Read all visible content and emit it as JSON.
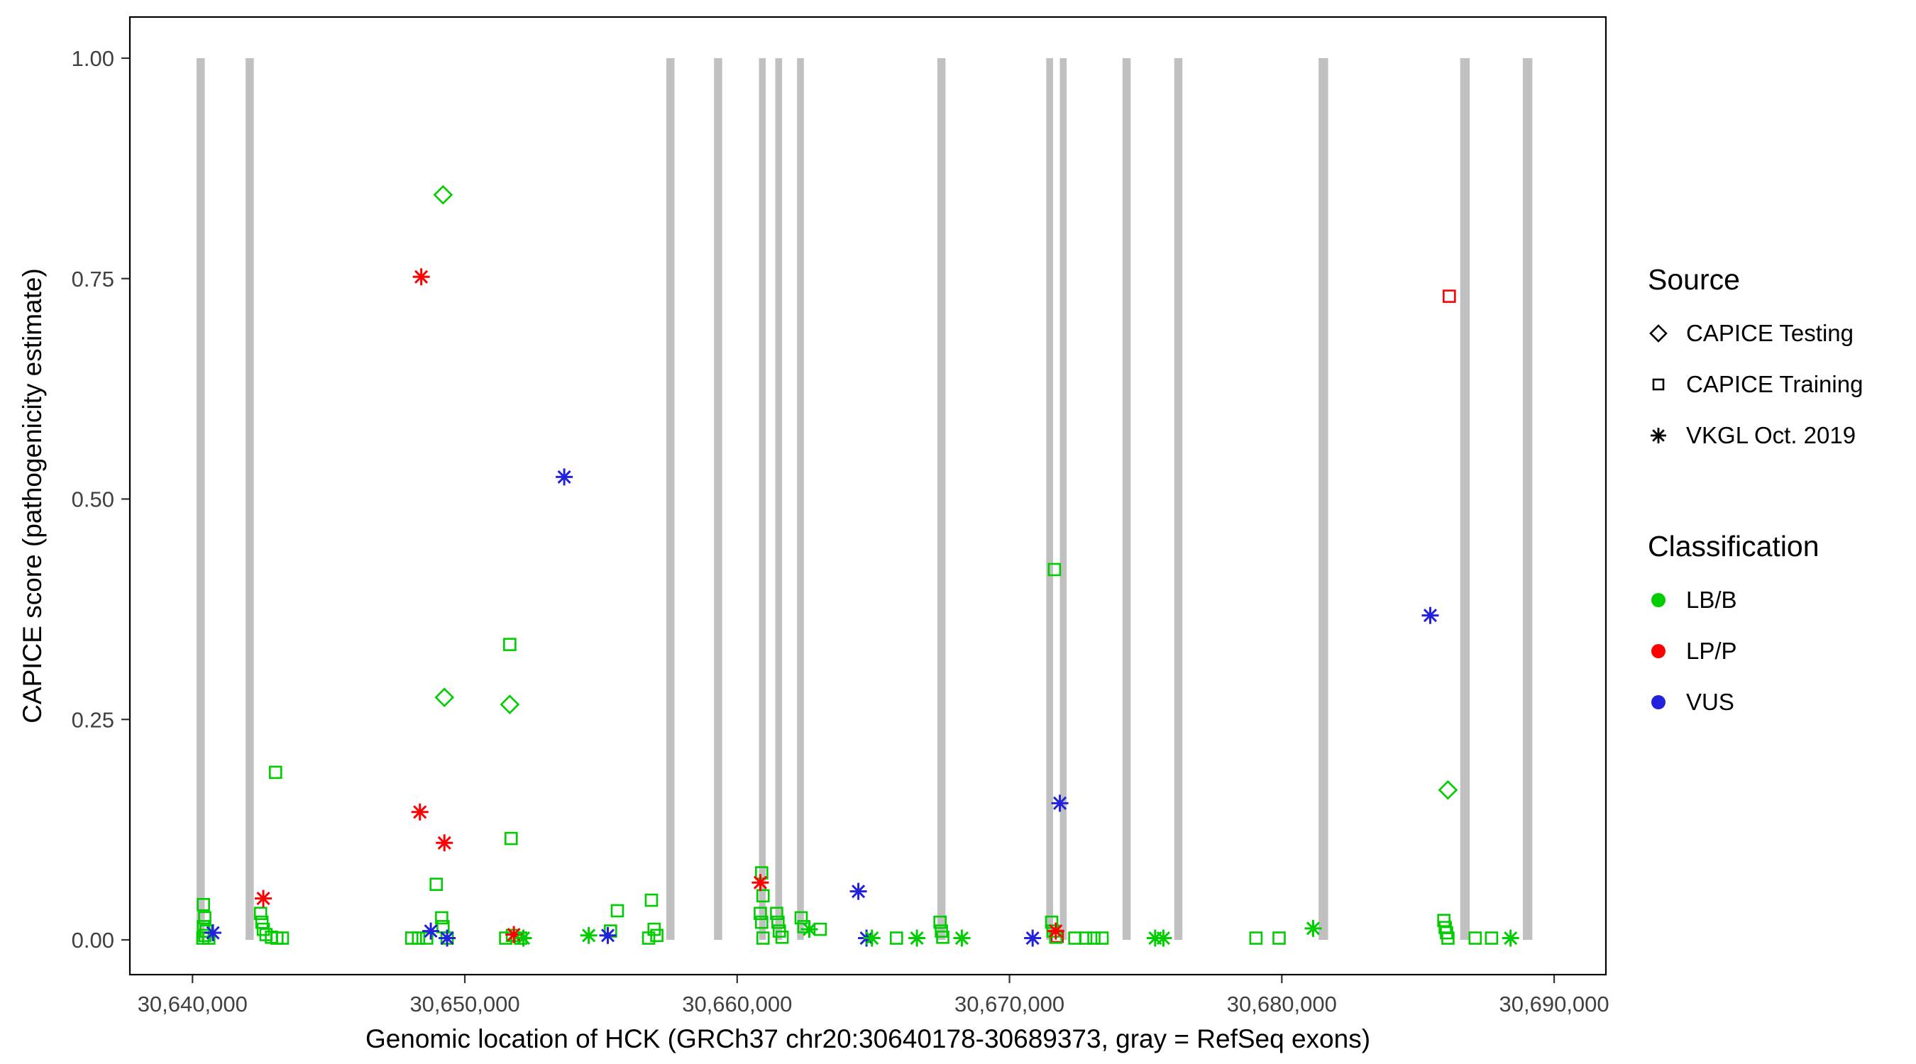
{
  "colors": {
    "lbb": "#00CD00",
    "lpp": "#FF0000",
    "vus": "#2222DD",
    "exon": "#C0C0C0",
    "legend_symbol": "#000000"
  },
  "legend": {
    "source": {
      "title": "Source",
      "items": [
        {
          "label": "CAPICE Testing",
          "symbol": "diamond"
        },
        {
          "label": "CAPICE Training",
          "symbol": "square"
        },
        {
          "label": "VKGL Oct. 2019",
          "symbol": "asterisk"
        }
      ]
    },
    "classification": {
      "title": "Classification",
      "items": [
        {
          "label": "LB/B",
          "color_key": "lbb"
        },
        {
          "label": "LP/P",
          "color_key": "lpp"
        },
        {
          "label": "VUS",
          "color_key": "vus"
        }
      ]
    }
  },
  "chart_data": {
    "type": "scatter",
    "title": "",
    "xlabel": "Genomic location of HCK (GRCh37 chr20:30640178-30689373, gray = RefSeq exons)",
    "ylabel": "CAPICE score (pathogenicity estimate)",
    "x_axis": {
      "domain": [
        30637700,
        30691900
      ],
      "ticks": [
        30640000,
        30650000,
        30660000,
        30670000,
        30680000,
        30690000
      ],
      "tick_labels": [
        "30,640,000",
        "30,650,000",
        "30,660,000",
        "30,670,000",
        "30,680,000",
        "30,690,000"
      ]
    },
    "y_axis": {
      "domain": [
        0,
        1
      ],
      "ticks": [
        0,
        0.25,
        0.5,
        0.75,
        1
      ],
      "tick_labels": [
        "0.00",
        "0.25",
        "0.50",
        "0.75",
        "1.00"
      ]
    },
    "exons": [
      {
        "start": 30640150,
        "end": 30640450
      },
      {
        "start": 30641950,
        "end": 30642250
      },
      {
        "start": 30657400,
        "end": 30657700
      },
      {
        "start": 30659150,
        "end": 30659450
      },
      {
        "start": 30660800,
        "end": 30661050
      },
      {
        "start": 30661400,
        "end": 30661650
      },
      {
        "start": 30662200,
        "end": 30662450
      },
      {
        "start": 30667350,
        "end": 30667650
      },
      {
        "start": 30671350,
        "end": 30671600
      },
      {
        "start": 30671850,
        "end": 30672100
      },
      {
        "start": 30674150,
        "end": 30674450
      },
      {
        "start": 30676050,
        "end": 30676350
      },
      {
        "start": 30681350,
        "end": 30681700
      },
      {
        "start": 30686550,
        "end": 30686900
      },
      {
        "start": 30688850,
        "end": 30689200
      }
    ],
    "points": [
      {
        "pos": 30649200,
        "score": 0.845,
        "source": "testing",
        "cls": "lbb"
      },
      {
        "pos": 30649250,
        "score": 0.275,
        "source": "testing",
        "cls": "lbb"
      },
      {
        "pos": 30651650,
        "score": 0.267,
        "source": "testing",
        "cls": "lbb"
      },
      {
        "pos": 30686100,
        "score": 0.17,
        "source": "testing",
        "cls": "lbb"
      },
      {
        "pos": 30686150,
        "score": 0.73,
        "source": "training",
        "cls": "lpp"
      },
      {
        "pos": 30671750,
        "score": 0.004,
        "source": "training",
        "cls": "lpp"
      },
      {
        "pos": 30643050,
        "score": 0.19,
        "source": "training",
        "cls": "lbb"
      },
      {
        "pos": 30651650,
        "score": 0.335,
        "source": "training",
        "cls": "lbb"
      },
      {
        "pos": 30651700,
        "score": 0.115,
        "source": "training",
        "cls": "lbb"
      },
      {
        "pos": 30648950,
        "score": 0.063,
        "source": "training",
        "cls": "lbb"
      },
      {
        "pos": 30671650,
        "score": 0.42,
        "source": "training",
        "cls": "lbb"
      },
      {
        "pos": 30660900,
        "score": 0.076,
        "source": "training",
        "cls": "lbb"
      },
      {
        "pos": 30660950,
        "score": 0.05,
        "source": "training",
        "cls": "lbb"
      },
      {
        "pos": 30656850,
        "score": 0.045,
        "source": "training",
        "cls": "lbb"
      },
      {
        "pos": 30655600,
        "score": 0.033,
        "source": "training",
        "cls": "lbb"
      },
      {
        "pos": 30640400,
        "score": 0.04,
        "source": "training",
        "cls": "lbb"
      },
      {
        "pos": 30640450,
        "score": 0.025,
        "source": "training",
        "cls": "lbb"
      },
      {
        "pos": 30640400,
        "score": 0.015,
        "source": "training",
        "cls": "lbb"
      },
      {
        "pos": 30640500,
        "score": 0.01,
        "source": "training",
        "cls": "lbb"
      },
      {
        "pos": 30640450,
        "score": 0.005,
        "source": "training",
        "cls": "lbb"
      },
      {
        "pos": 30640380,
        "score": 0.002,
        "source": "training",
        "cls": "lbb"
      },
      {
        "pos": 30640600,
        "score": 0.002,
        "source": "training",
        "cls": "lbb"
      },
      {
        "pos": 30642500,
        "score": 0.03,
        "source": "training",
        "cls": "lbb"
      },
      {
        "pos": 30642550,
        "score": 0.02,
        "source": "training",
        "cls": "lbb"
      },
      {
        "pos": 30642600,
        "score": 0.012,
        "source": "training",
        "cls": "lbb"
      },
      {
        "pos": 30642700,
        "score": 0.006,
        "source": "training",
        "cls": "lbb"
      },
      {
        "pos": 30642900,
        "score": 0.003,
        "source": "training",
        "cls": "lbb"
      },
      {
        "pos": 30643100,
        "score": 0.002,
        "source": "training",
        "cls": "lbb"
      },
      {
        "pos": 30643300,
        "score": 0.002,
        "source": "training",
        "cls": "lbb"
      },
      {
        "pos": 30648050,
        "score": 0.002,
        "source": "training",
        "cls": "lbb"
      },
      {
        "pos": 30648300,
        "score": 0.002,
        "source": "training",
        "cls": "lbb"
      },
      {
        "pos": 30648600,
        "score": 0.002,
        "source": "training",
        "cls": "lbb"
      },
      {
        "pos": 30649150,
        "score": 0.025,
        "source": "training",
        "cls": "lbb"
      },
      {
        "pos": 30649200,
        "score": 0.015,
        "source": "training",
        "cls": "lbb"
      },
      {
        "pos": 30649350,
        "score": 0.002,
        "source": "training",
        "cls": "lbb"
      },
      {
        "pos": 30651500,
        "score": 0.002,
        "source": "training",
        "cls": "lbb"
      },
      {
        "pos": 30651750,
        "score": 0.005,
        "source": "training",
        "cls": "lbb"
      },
      {
        "pos": 30652050,
        "score": 0.002,
        "source": "training",
        "cls": "lbb"
      },
      {
        "pos": 30655350,
        "score": 0.01,
        "source": "training",
        "cls": "lbb"
      },
      {
        "pos": 30656950,
        "score": 0.012,
        "source": "training",
        "cls": "lbb"
      },
      {
        "pos": 30657050,
        "score": 0.005,
        "source": "training",
        "cls": "lbb"
      },
      {
        "pos": 30656750,
        "score": 0.002,
        "source": "training",
        "cls": "lbb"
      },
      {
        "pos": 30660850,
        "score": 0.03,
        "source": "training",
        "cls": "lbb"
      },
      {
        "pos": 30660900,
        "score": 0.02,
        "source": "training",
        "cls": "lbb"
      },
      {
        "pos": 30660950,
        "score": 0.002,
        "source": "training",
        "cls": "lbb"
      },
      {
        "pos": 30661450,
        "score": 0.03,
        "source": "training",
        "cls": "lbb"
      },
      {
        "pos": 30661500,
        "score": 0.02,
        "source": "training",
        "cls": "lbb"
      },
      {
        "pos": 30661550,
        "score": 0.01,
        "source": "training",
        "cls": "lbb"
      },
      {
        "pos": 30661650,
        "score": 0.003,
        "source": "training",
        "cls": "lbb"
      },
      {
        "pos": 30662350,
        "score": 0.025,
        "source": "training",
        "cls": "lbb"
      },
      {
        "pos": 30662450,
        "score": 0.015,
        "source": "training",
        "cls": "lbb"
      },
      {
        "pos": 30663050,
        "score": 0.012,
        "source": "training",
        "cls": "lbb"
      },
      {
        "pos": 30665850,
        "score": 0.002,
        "source": "training",
        "cls": "lbb"
      },
      {
        "pos": 30667450,
        "score": 0.02,
        "source": "training",
        "cls": "lbb"
      },
      {
        "pos": 30667500,
        "score": 0.01,
        "source": "training",
        "cls": "lbb"
      },
      {
        "pos": 30667550,
        "score": 0.003,
        "source": "training",
        "cls": "lbb"
      },
      {
        "pos": 30671550,
        "score": 0.02,
        "source": "training",
        "cls": "lbb"
      },
      {
        "pos": 30671600,
        "score": 0.01,
        "source": "training",
        "cls": "lbb"
      },
      {
        "pos": 30671700,
        "score": 0.003,
        "source": "training",
        "cls": "lbb"
      },
      {
        "pos": 30672400,
        "score": 0.002,
        "source": "training",
        "cls": "lbb"
      },
      {
        "pos": 30672800,
        "score": 0.002,
        "source": "training",
        "cls": "lbb"
      },
      {
        "pos": 30673100,
        "score": 0.002,
        "source": "training",
        "cls": "lbb"
      },
      {
        "pos": 30673400,
        "score": 0.002,
        "source": "training",
        "cls": "lbb"
      },
      {
        "pos": 30679050,
        "score": 0.002,
        "source": "training",
        "cls": "lbb"
      },
      {
        "pos": 30679900,
        "score": 0.002,
        "source": "training",
        "cls": "lbb"
      },
      {
        "pos": 30685950,
        "score": 0.022,
        "source": "training",
        "cls": "lbb"
      },
      {
        "pos": 30686000,
        "score": 0.014,
        "source": "training",
        "cls": "lbb"
      },
      {
        "pos": 30686050,
        "score": 0.008,
        "source": "training",
        "cls": "lbb"
      },
      {
        "pos": 30686100,
        "score": 0.002,
        "source": "training",
        "cls": "lbb"
      },
      {
        "pos": 30687100,
        "score": 0.002,
        "source": "training",
        "cls": "lbb"
      },
      {
        "pos": 30687700,
        "score": 0.002,
        "source": "training",
        "cls": "lbb"
      },
      {
        "pos": 30648400,
        "score": 0.752,
        "source": "vkgl",
        "cls": "lpp"
      },
      {
        "pos": 30648350,
        "score": 0.145,
        "source": "vkgl",
        "cls": "lpp"
      },
      {
        "pos": 30649250,
        "score": 0.11,
        "source": "vkgl",
        "cls": "lpp"
      },
      {
        "pos": 30642600,
        "score": 0.047,
        "source": "vkgl",
        "cls": "lpp"
      },
      {
        "pos": 30660850,
        "score": 0.065,
        "source": "vkgl",
        "cls": "lpp"
      },
      {
        "pos": 30651800,
        "score": 0.006,
        "source": "vkgl",
        "cls": "lpp"
      },
      {
        "pos": 30671700,
        "score": 0.01,
        "source": "vkgl",
        "cls": "lpp"
      },
      {
        "pos": 30653650,
        "score": 0.525,
        "source": "vkgl",
        "cls": "vus"
      },
      {
        "pos": 30685450,
        "score": 0.368,
        "source": "vkgl",
        "cls": "vus"
      },
      {
        "pos": 30671850,
        "score": 0.155,
        "source": "vkgl",
        "cls": "vus"
      },
      {
        "pos": 30664450,
        "score": 0.055,
        "source": "vkgl",
        "cls": "vus"
      },
      {
        "pos": 30640750,
        "score": 0.008,
        "source": "vkgl",
        "cls": "vus"
      },
      {
        "pos": 30648750,
        "score": 0.01,
        "source": "vkgl",
        "cls": "vus"
      },
      {
        "pos": 30649350,
        "score": 0.002,
        "source": "vkgl",
        "cls": "vus"
      },
      {
        "pos": 30655250,
        "score": 0.005,
        "source": "vkgl",
        "cls": "vus"
      },
      {
        "pos": 30664750,
        "score": 0.002,
        "source": "vkgl",
        "cls": "vus"
      },
      {
        "pos": 30670850,
        "score": 0.002,
        "source": "vkgl",
        "cls": "vus"
      },
      {
        "pos": 30654550,
        "score": 0.005,
        "source": "vkgl",
        "cls": "lbb"
      },
      {
        "pos": 30662650,
        "score": 0.012,
        "source": "vkgl",
        "cls": "lbb"
      },
      {
        "pos": 30664950,
        "score": 0.002,
        "source": "vkgl",
        "cls": "lbb"
      },
      {
        "pos": 30666600,
        "score": 0.002,
        "source": "vkgl",
        "cls": "lbb"
      },
      {
        "pos": 30668250,
        "score": 0.002,
        "source": "vkgl",
        "cls": "lbb"
      },
      {
        "pos": 30675350,
        "score": 0.002,
        "source": "vkgl",
        "cls": "lbb"
      },
      {
        "pos": 30675650,
        "score": 0.002,
        "source": "vkgl",
        "cls": "lbb"
      },
      {
        "pos": 30681150,
        "score": 0.013,
        "source": "vkgl",
        "cls": "lbb"
      },
      {
        "pos": 30688400,
        "score": 0.002,
        "source": "vkgl",
        "cls": "lbb"
      },
      {
        "pos": 30652150,
        "score": 0.002,
        "source": "vkgl",
        "cls": "lbb"
      }
    ]
  }
}
